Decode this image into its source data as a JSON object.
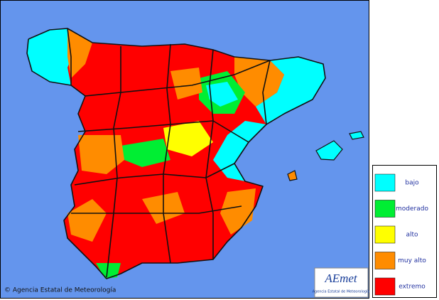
{
  "legend": {
    "items": [
      {
        "label": "bajo",
        "color": "#00ffff"
      },
      {
        "label": "moderado",
        "color": "#00ee33"
      },
      {
        "label": "alto",
        "color": "#ffff00"
      },
      {
        "label": "muy alto",
        "color": "#ff8c00"
      },
      {
        "label": "extremo",
        "color": "#ff0000"
      }
    ]
  },
  "footer": {
    "copyright": "© Agencia Estatal de Meteorología"
  },
  "logo": {
    "name": "AEmet",
    "subtitle": "Agencia Estatal de Meteorología"
  }
}
